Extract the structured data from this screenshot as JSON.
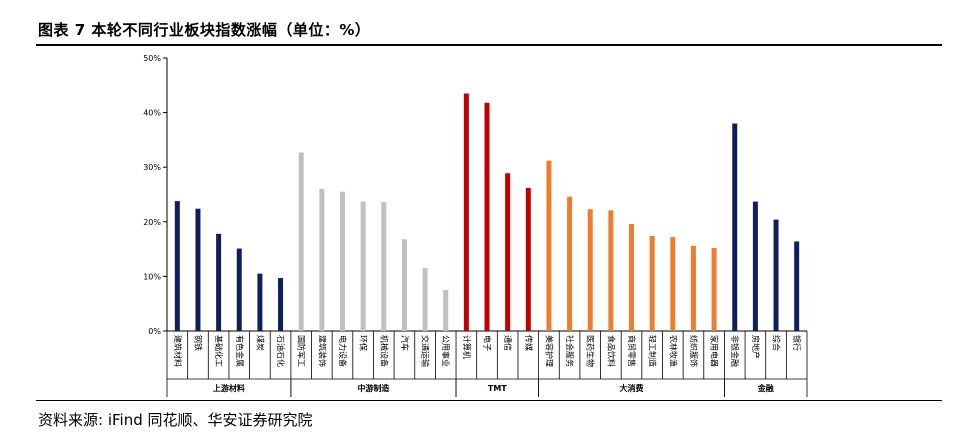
{
  "title": "图表 7 本轮不同行业板块指数涨幅（单位：%）",
  "source": "资料来源: iFind 同花顺、华安证券研究院",
  "chart_data": {
    "type": "bar",
    "ylim": [
      0,
      50
    ],
    "yticks": [
      0,
      10,
      20,
      30,
      40,
      50
    ],
    "ytick_labels": [
      "0%",
      "10%",
      "20%",
      "30%",
      "40%",
      "50%"
    ],
    "grid": false,
    "groups": [
      {
        "name": "上游材料",
        "color": "#0f1f5c",
        "start": 0,
        "end": 5
      },
      {
        "name": "中游制造",
        "color": "#c0c0c0",
        "start": 6,
        "end": 13
      },
      {
        "name": "TMT",
        "color": "#c00000",
        "start": 14,
        "end": 17
      },
      {
        "name": "大消费",
        "color": "#ed7d31",
        "start": 18,
        "end": 26
      },
      {
        "name": "金融",
        "color": "#0f1f5c",
        "start": 27,
        "end": 30
      }
    ],
    "categories": [
      "建筑材料",
      "钢铁",
      "基础化工",
      "有色金属",
      "煤炭",
      "石油石化",
      "国防军工",
      "建筑装饰",
      "电力设备",
      "环保",
      "机械设备",
      "汽车",
      "交通运输",
      "公用事业",
      "计算机",
      "电子",
      "通信",
      "传媒",
      "美容护理",
      "社会服务",
      "医药生物",
      "食品饮料",
      "商贸零售",
      "轻工制造",
      "农林牧渔",
      "纺织服饰",
      "家用电器",
      "非银金融",
      "房地产",
      "综合",
      "银行"
    ],
    "values": [
      23.8,
      22.4,
      17.8,
      15.1,
      10.5,
      9.7,
      32.7,
      26.0,
      25.5,
      23.7,
      23.6,
      16.8,
      11.5,
      7.5,
      43.5,
      41.8,
      28.9,
      26.2,
      31.2,
      24.6,
      22.3,
      22.1,
      19.6,
      17.4,
      17.2,
      15.6,
      15.2,
      38.0,
      23.7,
      20.4,
      16.4
    ]
  }
}
